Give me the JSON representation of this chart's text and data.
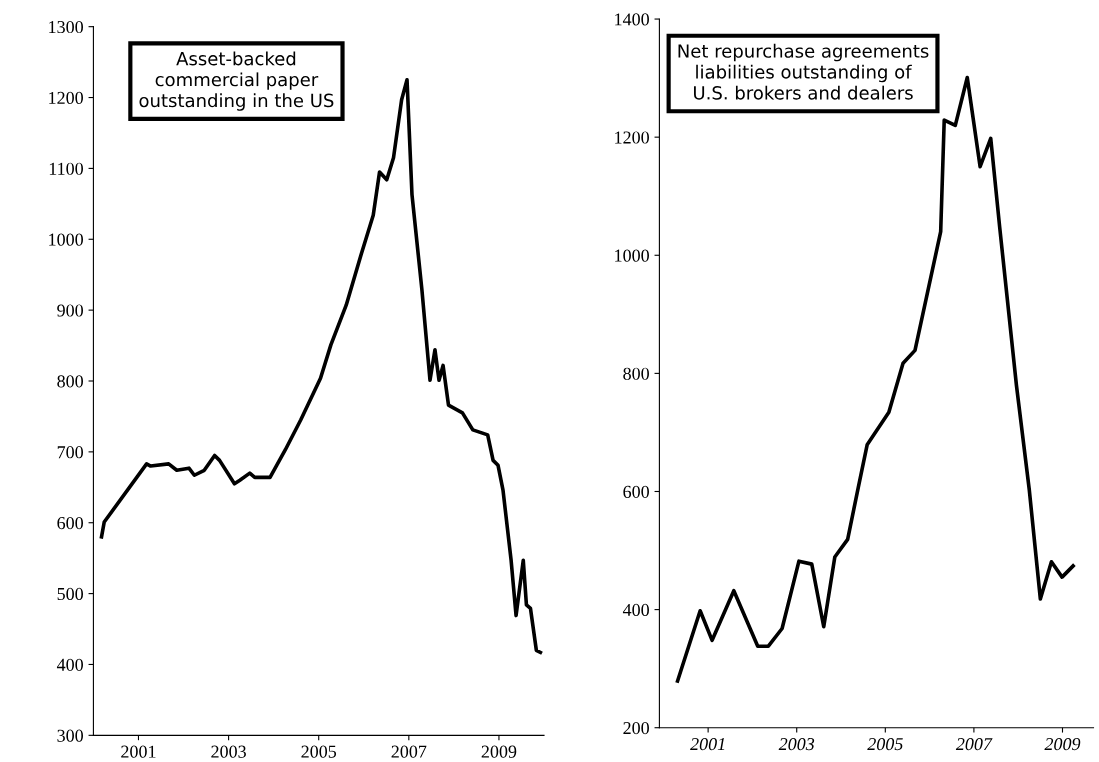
{
  "chart_data": [
    {
      "type": "line",
      "title": "Asset-backed\ncommercial paper\noutstanding in the US",
      "xlim": [
        2000,
        2010
      ],
      "ylim": [
        300,
        1300
      ],
      "xticks": [
        2001,
        2003,
        2005,
        2007,
        2009
      ],
      "yticks": [
        300,
        400,
        500,
        600,
        700,
        800,
        900,
        1000,
        1100,
        1200,
        1300
      ],
      "grid": false,
      "marker": "none",
      "line_style": "solid",
      "series": [
        {
          "color": "#000000",
          "x": [
            2000.18,
            2000.24,
            2001.18,
            2001.27,
            2001.67,
            2001.85,
            2002.12,
            2002.24,
            2002.46,
            2002.69,
            2002.8,
            2003.13,
            2003.25,
            2003.47,
            2003.58,
            2003.92,
            2004.26,
            2004.6,
            2005.04,
            2005.27,
            2005.61,
            2005.94,
            2006.21,
            2006.35,
            2006.51,
            2006.66,
            2006.84,
            2006.96,
            2007.07,
            2007.29,
            2007.47,
            2007.58,
            2007.67,
            2007.76,
            2007.88,
            2008.19,
            2008.42,
            2008.75,
            2008.87,
            2008.98,
            2009.09,
            2009.27,
            2009.38,
            2009.54,
            2009.61,
            2009.7,
            2009.83,
            2009.92
          ],
          "values": [
            580,
            601,
            683,
            680,
            683,
            674,
            677,
            667,
            674,
            695,
            688,
            655,
            660,
            670,
            664,
            664,
            703,
            745,
            804,
            851,
            907,
            978,
            1034,
            1095,
            1084,
            1115,
            1197,
            1225,
            1063,
            929,
            801,
            844,
            801,
            822,
            766,
            755,
            731,
            724,
            688,
            681,
            646,
            547,
            469,
            547,
            484,
            479,
            420,
            417
          ]
        }
      ]
    },
    {
      "type": "line",
      "title": "Net repurchase agreements\nliabilities outstanding of\nU.S. brokers and dealers",
      "xlim": [
        1999.9,
        2009.7
      ],
      "ylim": [
        200,
        1400
      ],
      "xticks": [
        2001,
        2003,
        2005,
        2007,
        2009
      ],
      "yticks": [
        200,
        400,
        600,
        800,
        1000,
        1200,
        1400
      ],
      "grid": false,
      "marker": "none",
      "line_style": "solid",
      "series": [
        {
          "color": "#000000",
          "x": [
            2000.31,
            2000.82,
            2001.09,
            2001.58,
            2002.12,
            2002.36,
            2002.67,
            2003.05,
            2003.34,
            2003.61,
            2003.86,
            2004.15,
            2004.39,
            2004.59,
            2005.08,
            2005.4,
            2005.67,
            2006.25,
            2006.33,
            2006.58,
            2006.85,
            2007.14,
            2007.38,
            2007.58,
            2007.96,
            2008.25,
            2008.5,
            2008.75,
            2008.99,
            2009.24
          ],
          "values": [
            279,
            398,
            348,
            432,
            338,
            338,
            368,
            482,
            477,
            371,
            489,
            519,
            607,
            679,
            734,
            817,
            839,
            1040,
            1229,
            1220,
            1301,
            1150,
            1198,
            1049,
            780,
            603,
            418,
            481,
            455,
            474
          ]
        }
      ]
    }
  ]
}
